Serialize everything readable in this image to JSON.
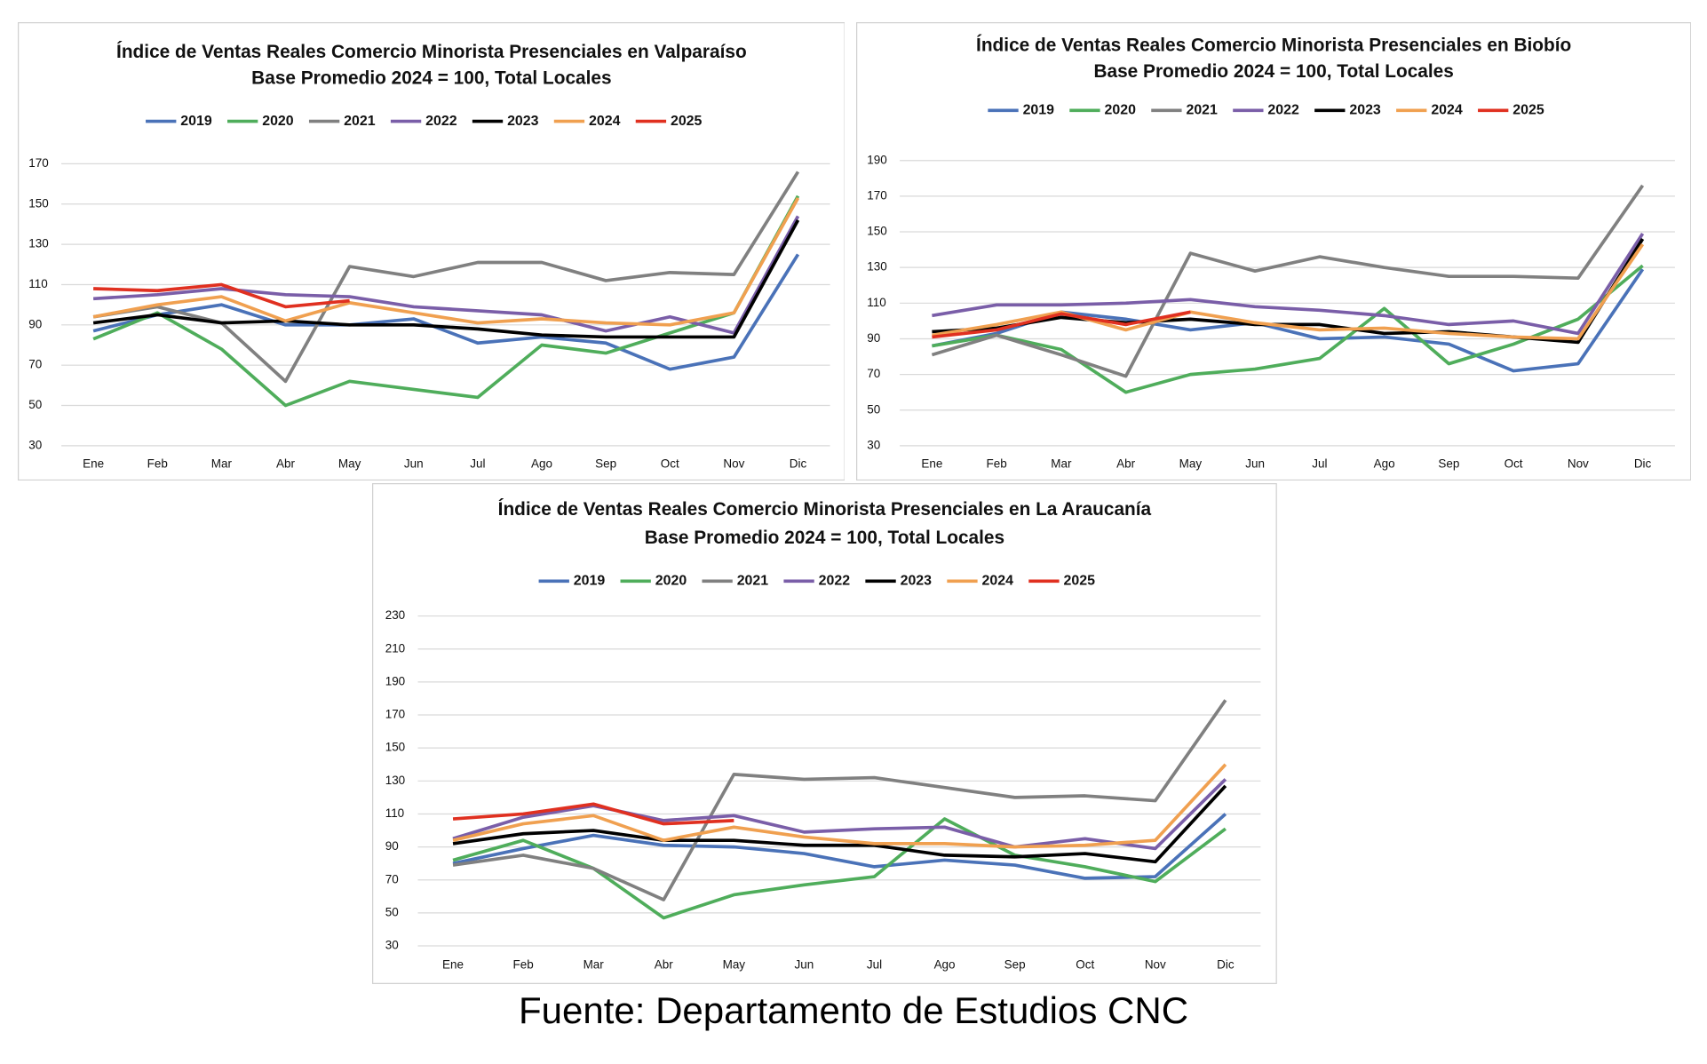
{
  "chart_data": [
    {
      "type": "line",
      "title": "Índice de Ventas Reales Comercio Minorista Presenciales en Valparaíso",
      "subtitle": "Base Promedio 2024 = 100, Total Locales",
      "categories": [
        "Ene",
        "Feb",
        "Mar",
        "Abr",
        "May",
        "Jun",
        "Jul",
        "Ago",
        "Sep",
        "Oct",
        "Nov",
        "Dic"
      ],
      "ylim": [
        30,
        170
      ],
      "yticks": [
        30,
        50,
        70,
        90,
        110,
        130,
        150,
        170
      ],
      "grid": true,
      "legend": "top",
      "series": [
        {
          "name": "2019",
          "color": "#4a72b8",
          "values": [
            87,
            95,
            100,
            90,
            90,
            93,
            81,
            84,
            81,
            68,
            74,
            125
          ]
        },
        {
          "name": "2020",
          "color": "#4fad5b",
          "values": [
            83,
            96,
            78,
            50,
            62,
            58,
            54,
            80,
            76,
            86,
            96,
            154
          ]
        },
        {
          "name": "2021",
          "color": "#808080",
          "values": [
            94,
            99,
            91,
            62,
            119,
            114,
            121,
            121,
            112,
            116,
            115,
            166
          ]
        },
        {
          "name": "2022",
          "color": "#7a5ea8",
          "values": [
            103,
            105,
            108,
            105,
            104,
            99,
            97,
            95,
            87,
            94,
            86,
            144
          ]
        },
        {
          "name": "2023",
          "color": "#000000",
          "values": [
            91,
            95,
            91,
            92,
            90,
            90,
            88,
            85,
            84,
            84,
            84,
            142
          ]
        },
        {
          "name": "2024",
          "color": "#f0a050",
          "values": [
            94,
            100,
            104,
            92,
            101,
            96,
            91,
            93,
            91,
            90,
            96,
            153
          ]
        },
        {
          "name": "2025",
          "color": "#e03020",
          "values": [
            108,
            107,
            110,
            99,
            102,
            null,
            null,
            null,
            null,
            null,
            null,
            null
          ]
        }
      ]
    },
    {
      "type": "line",
      "title": "Índice de Ventas Reales Comercio Minorista Presenciales en Biobío",
      "subtitle": "Base Promedio 2024 = 100, Total Locales",
      "categories": [
        "Ene",
        "Feb",
        "Mar",
        "Abr",
        "May",
        "Jun",
        "Jul",
        "Ago",
        "Sep",
        "Oct",
        "Nov",
        "Dic"
      ],
      "ylim": [
        30,
        190
      ],
      "yticks": [
        30,
        50,
        70,
        90,
        110,
        130,
        150,
        170,
        190
      ],
      "grid": true,
      "legend": "top",
      "series": [
        {
          "name": "2019",
          "color": "#4a72b8",
          "values": [
            86,
            93,
            105,
            101,
            95,
            99,
            90,
            91,
            87,
            72,
            76,
            129
          ]
        },
        {
          "name": "2020",
          "color": "#4fad5b",
          "values": [
            86,
            92,
            84,
            60,
            70,
            73,
            79,
            107,
            76,
            87,
            101,
            131
          ]
        },
        {
          "name": "2021",
          "color": "#808080",
          "values": [
            81,
            92,
            81,
            69,
            138,
            128,
            136,
            130,
            125,
            125,
            124,
            176
          ]
        },
        {
          "name": "2022",
          "color": "#7a5ea8",
          "values": [
            103,
            109,
            109,
            110,
            112,
            108,
            106,
            103,
            98,
            100,
            93,
            149
          ]
        },
        {
          "name": "2023",
          "color": "#000000",
          "values": [
            94,
            96,
            102,
            99,
            101,
            98,
            98,
            93,
            94,
            91,
            88,
            146
          ]
        },
        {
          "name": "2024",
          "color": "#f0a050",
          "values": [
            92,
            98,
            105,
            95,
            105,
            99,
            95,
            96,
            93,
            91,
            90,
            143
          ]
        },
        {
          "name": "2025",
          "color": "#e03020",
          "values": [
            91,
            95,
            104,
            98,
            105,
            null,
            null,
            null,
            null,
            null,
            null,
            null
          ]
        }
      ]
    },
    {
      "type": "line",
      "title": "Índice de Ventas Reales Comercio Minorista Presenciales en La Araucanía",
      "subtitle": "Base Promedio 2024 = 100, Total Locales",
      "categories": [
        "Ene",
        "Feb",
        "Mar",
        "Abr",
        "May",
        "Jun",
        "Jul",
        "Ago",
        "Sep",
        "Oct",
        "Nov",
        "Dic"
      ],
      "ylim": [
        30,
        230
      ],
      "yticks": [
        30,
        50,
        70,
        90,
        110,
        130,
        150,
        170,
        190,
        210,
        230
      ],
      "grid": true,
      "legend": "top",
      "series": [
        {
          "name": "2019",
          "color": "#4a72b8",
          "values": [
            80,
            89,
            97,
            91,
            90,
            86,
            78,
            82,
            79,
            71,
            72,
            110
          ]
        },
        {
          "name": "2020",
          "color": "#4fad5b",
          "values": [
            82,
            94,
            77,
            47,
            61,
            67,
            72,
            107,
            85,
            78,
            69,
            101
          ]
        },
        {
          "name": "2021",
          "color": "#808080",
          "values": [
            79,
            85,
            77,
            58,
            134,
            131,
            132,
            126,
            120,
            121,
            118,
            179
          ]
        },
        {
          "name": "2022",
          "color": "#7a5ea8",
          "values": [
            95,
            108,
            115,
            106,
            109,
            99,
            101,
            102,
            90,
            95,
            89,
            131
          ]
        },
        {
          "name": "2023",
          "color": "#000000",
          "values": [
            92,
            98,
            100,
            94,
            94,
            91,
            91,
            85,
            84,
            86,
            81,
            127
          ]
        },
        {
          "name": "2024",
          "color": "#f0a050",
          "values": [
            94,
            104,
            109,
            94,
            102,
            96,
            92,
            92,
            90,
            91,
            94,
            140
          ]
        },
        {
          "name": "2025",
          "color": "#e03020",
          "values": [
            107,
            110,
            116,
            104,
            106,
            null,
            null,
            null,
            null,
            null,
            null,
            null
          ]
        }
      ]
    }
  ],
  "source": "Fuente: Departamento de Estudios CNC"
}
